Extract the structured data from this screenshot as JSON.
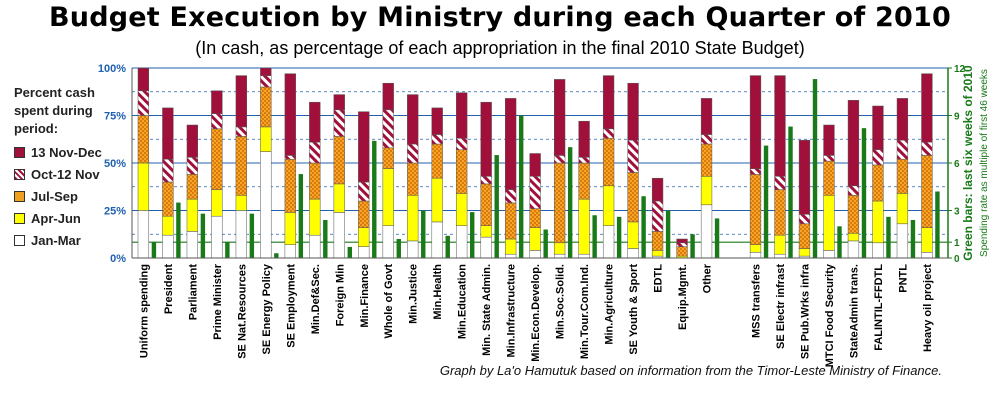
{
  "chart_data": {
    "type": "bar",
    "title": "Budget Execution by Ministry during each Quarter of 2010",
    "subtitle": "(In cash, as percentage of each appropriation in the final 2010 State Budget)",
    "legend_title": "Percent cash spent during period:",
    "legend_placement": "left",
    "ylabel": "",
    "ylim": [
      0,
      100
    ],
    "yticks": [
      "0%",
      "25%",
      "50%",
      "75%",
      "100%"
    ],
    "y2label": "Green bars: last six weeks of 2010",
    "y2sublabel": "Spending rate as multiple of first 46 weeks",
    "y2lim": [
      0,
      12
    ],
    "y2ticks": [
      "0",
      "1",
      "3",
      "6",
      "9",
      "12"
    ],
    "credit": "Graph by La'o Hamutuk based on information from the Timor-Leste Ministry of Finance.",
    "colors": {
      "Jan-Mar": "#ffffff",
      "Apr-Jun": "#ffff00",
      "Jul-Sep": "#f0a020",
      "Oct-12 Nov": "#e090a8",
      "13 Nov-Dec": "#a0103a",
      "green": "#1a7a1a",
      "grid": "#2060b0"
    },
    "categories": [
      "Uniform spending",
      "President",
      "Parliament",
      "Prime Minister",
      "SE Nat.Resources",
      "SE Energy Policy",
      "SE Employment",
      "Min.Def&Sec.",
      "Foreign Min",
      "Min.Finance",
      "Whole of Govt",
      "Min.Justice",
      "Min.Health",
      "Min.Education",
      "Min. State Admin.",
      "Min.Infrastructure",
      "Min.Econ.Develop.",
      "Min.Soc.Solid.",
      "Min.Tour.Com.Ind.",
      "Min.Agriculture",
      "SE Youth & Sport",
      "EDTL",
      "Equip.Mgmt.",
      "Other",
      "MSS transfers",
      "SE Electr infrast",
      "SE Pub.Wrks infra",
      "MTCI Food Security",
      "StateAdmin trans.",
      "FALINTIL-FFDTL",
      "PNTL",
      "Heavy oil project"
    ],
    "gap_after_index": 23,
    "series": [
      {
        "name": "Jan-Mar",
        "values": [
          25,
          12,
          14,
          22,
          25,
          56,
          7,
          12,
          24,
          6,
          17,
          9,
          19,
          17,
          11,
          2,
          4,
          2,
          2,
          17,
          5,
          1,
          0,
          28,
          3,
          2,
          1,
          4,
          9,
          8,
          18,
          3
        ]
      },
      {
        "name": "Apr-Jun",
        "values": [
          25,
          10,
          17,
          14,
          8,
          13,
          17,
          19,
          15,
          10,
          30,
          24,
          23,
          17,
          6,
          8,
          12,
          6,
          29,
          21,
          14,
          3,
          1,
          15,
          4,
          10,
          4,
          29,
          4,
          22,
          16,
          13
        ]
      },
      {
        "name": "Jul-Sep",
        "values": [
          25,
          18,
          13,
          32,
          31,
          21,
          28,
          19,
          25,
          14,
          11,
          17,
          18,
          23,
          22,
          19,
          10,
          42,
          19,
          25,
          26,
          10,
          5,
          17,
          37,
          24,
          13,
          18,
          20,
          19,
          18,
          38
        ]
      },
      {
        "name": "Oct-12 Nov",
        "values": [
          13,
          12,
          9,
          8,
          5,
          6,
          2,
          11,
          14,
          10,
          20,
          10,
          5,
          6,
          4,
          7,
          17,
          4,
          3,
          5,
          17,
          16,
          2,
          5,
          3,
          7,
          5,
          3,
          5,
          8,
          10,
          7
        ]
      },
      {
        "name": "13 Nov-Dec",
        "values": [
          12,
          27,
          17,
          12,
          27,
          4,
          43,
          21,
          8,
          37,
          14,
          26,
          14,
          24,
          39,
          48,
          12,
          40,
          19,
          28,
          30,
          12,
          2,
          19,
          49,
          53,
          39,
          16,
          45,
          23,
          22,
          36
        ]
      }
    ],
    "green_series": {
      "name": "Last six weeks spending rate (multiple of first 46 weeks)",
      "values": [
        1.0,
        3.5,
        2.8,
        1.0,
        2.8,
        0.3,
        5.3,
        2.4,
        0.7,
        7.4,
        1.2,
        3.0,
        1.4,
        2.9,
        6.5,
        9.0,
        1.8,
        7.0,
        2.7,
        2.6,
        3.9,
        3.0,
        1.5,
        2.5,
        7.1,
        8.3,
        11.3,
        2.0,
        8.2,
        2.6,
        2.4,
        4.2
      ]
    }
  }
}
